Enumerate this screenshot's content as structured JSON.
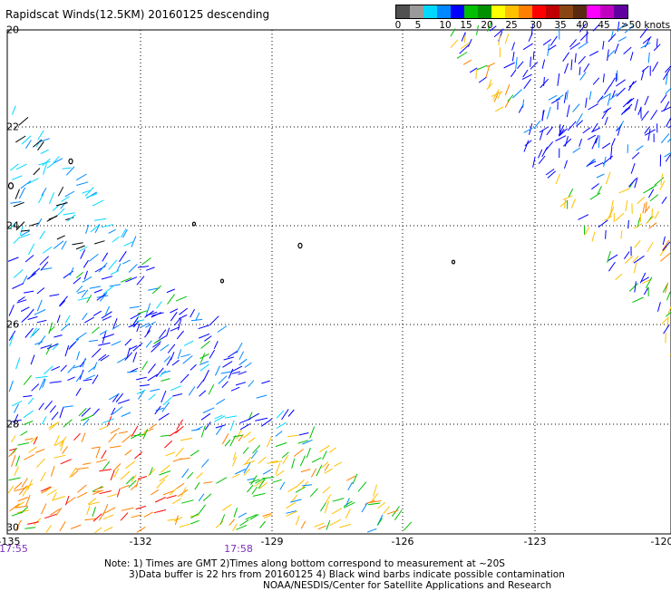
{
  "title": "Rapidscat Winds(12.5KM) 20160125 descending",
  "legend": {
    "labels": [
      "0",
      "5",
      "10",
      "15",
      "20",
      "25",
      "30",
      "35",
      "40",
      "45",
      ">50 knots"
    ],
    "colors": [
      "#505050",
      "#9a9a9a",
      "#00d8ff",
      "#0088ff",
      "#0000ff",
      "#00c000",
      "#009000",
      "#ffff00",
      "#ffc000",
      "#ff8000",
      "#ff0000",
      "#c00000",
      "#8b4513",
      "#5a2a10",
      "#ff00ff",
      "#c000c0",
      "#6000a0"
    ]
  },
  "axes": {
    "x_ticks": [
      "-135",
      "-132",
      "-129",
      "-126",
      "-123",
      "-120"
    ],
    "y_ticks": [
      "20",
      "22",
      "24",
      "26",
      "28",
      "30"
    ]
  },
  "times": [
    "17:55",
    "17:58"
  ],
  "notes": {
    "line1": "Note: 1) Times are GMT 2)Times along bottom correspond to measurement at ~20S",
    "line2": "3)Data buffer is 22 hrs from 20160125 4) Black wind barbs indicate possible contamination",
    "line3": "NOAA/NESDIS/Center for Satellite Applications and Research"
  }
}
